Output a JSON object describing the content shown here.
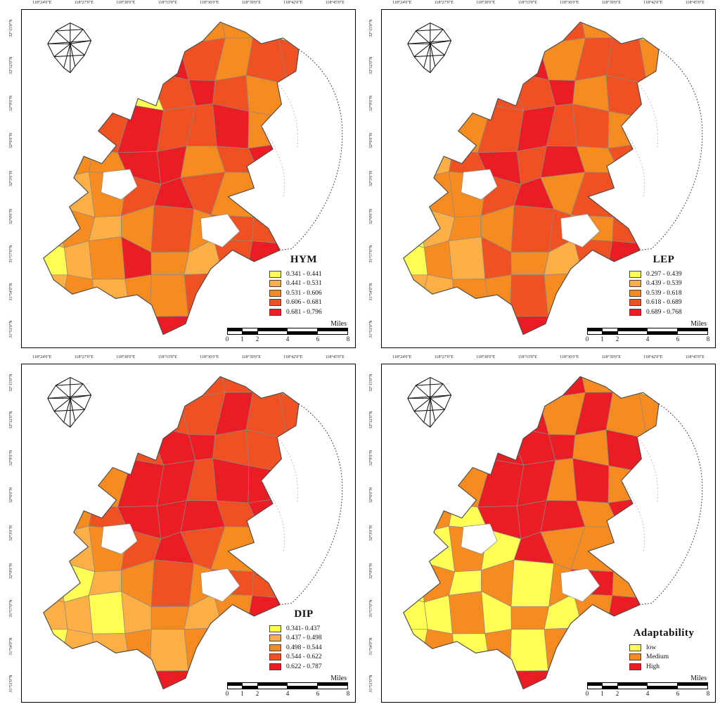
{
  "figure": {
    "top_axis_labels": [
      "118°24'0\"E",
      "118°27'0\"E",
      "118°30'0\"E",
      "118°33'0\"E",
      "118°36'0\"E",
      "118°39'0\"E",
      "118°42'0\"E",
      "118°45'0\"E"
    ],
    "left_axis_labels": [
      "32°15'0\"N",
      "32°12'0\"N",
      "32°9'0\"N",
      "32°6'0\"N",
      "32°3'0\"N",
      "32°0'0\"N",
      "31°57'0\"N",
      "31°54'0\"N",
      "31°51'0\"N"
    ],
    "scalebar": {
      "title": "Miles",
      "ticks": [
        "0",
        "1",
        "2",
        "4",
        "6",
        "8"
      ]
    },
    "palette5": [
      "#FFFF54",
      "#FBAF45",
      "#F68C1F",
      "#EF5122",
      "#EA1C24"
    ],
    "palette3": [
      "#FFFF54",
      "#F68C1F",
      "#EA1C24"
    ]
  },
  "panels": [
    {
      "id": "HYM",
      "title": "HYM",
      "palette": "palette5",
      "classes": [
        "0.341 - 0.441",
        "0.441 - 0.531",
        "0.531 - 0.606",
        "0.606 - 0.681",
        "0.681 - 0.796"
      ],
      "cells": [
        1,
        1,
        2,
        2,
        3,
        2,
        2,
        3,
        0,
        1,
        2,
        2,
        3,
        2,
        4,
        3,
        2,
        3,
        3,
        2,
        1,
        2,
        2,
        0,
        3,
        4,
        3,
        2,
        3,
        2,
        2,
        1,
        3,
        4,
        3,
        3,
        4,
        2,
        2,
        3,
        1,
        2,
        2,
        4,
        4,
        2,
        3,
        4,
        3,
        4,
        2,
        1,
        2,
        3,
        4,
        3,
        2,
        4,
        4,
        4,
        1,
        2,
        1,
        2,
        3,
        2,
        3,
        3,
        4,
        4,
        0,
        1,
        2,
        4,
        2,
        1,
        3,
        4,
        3,
        3,
        1,
        2,
        1,
        2,
        2,
        3,
        4,
        3,
        3,
        2,
        2,
        1,
        2,
        3,
        4,
        3,
        3,
        2,
        3,
        3
      ]
    },
    {
      "id": "LEP",
      "title": "LEP",
      "palette": "palette5",
      "classes": [
        "0.297 - 0.439",
        "0.439 - 0.539",
        "0.539 - 0.618",
        "0.618 - 0.689",
        "0.689 - 0.768"
      ],
      "cells": [
        2,
        2,
        2,
        3,
        2,
        3,
        2,
        2,
        0,
        2,
        1,
        2,
        3,
        3,
        4,
        2,
        3,
        3,
        2,
        1,
        2,
        1,
        2,
        3,
        3,
        4,
        2,
        3,
        3,
        2,
        1,
        2,
        2,
        3,
        4,
        3,
        3,
        2,
        2,
        3,
        2,
        1,
        3,
        4,
        3,
        4,
        2,
        3,
        4,
        4,
        1,
        2,
        2,
        3,
        4,
        2,
        3,
        4,
        4,
        4,
        0,
        1,
        2,
        2,
        3,
        3,
        2,
        3,
        4,
        4,
        0,
        2,
        1,
        3,
        2,
        1,
        3,
        4,
        3,
        3,
        1,
        1,
        2,
        2,
        3,
        2,
        4,
        3,
        3,
        2,
        2,
        2,
        1,
        3,
        4,
        3,
        2,
        3,
        3,
        3
      ]
    },
    {
      "id": "DIP",
      "title": "DIP",
      "palette": "palette5",
      "classes": [
        "0.341- 0.437",
        "0.437 - 0.498",
        "0.498 - 0.544",
        "0.544 - 0.622",
        "0.622 - 0.787"
      ],
      "cells": [
        2,
        2,
        3,
        3,
        4,
        3,
        3,
        4,
        2,
        2,
        2,
        3,
        3,
        4,
        3,
        3,
        4,
        3,
        3,
        2,
        1,
        2,
        3,
        3,
        4,
        4,
        3,
        3,
        4,
        2,
        2,
        1,
        2,
        4,
        4,
        3,
        4,
        4,
        3,
        3,
        1,
        2,
        3,
        4,
        4,
        4,
        3,
        4,
        2,
        2,
        1,
        1,
        2,
        3,
        4,
        3,
        2,
        4,
        4,
        3,
        1,
        0,
        1,
        2,
        3,
        2,
        3,
        3,
        4,
        4,
        1,
        1,
        0,
        1,
        2,
        1,
        2,
        4,
        3,
        3,
        0,
        1,
        1,
        2,
        1,
        2,
        4,
        2,
        3,
        2,
        1,
        2,
        1,
        2,
        4,
        2,
        3,
        2,
        2,
        2
      ]
    },
    {
      "id": "ADAPT",
      "title": "Adaptability",
      "palette": "palette3",
      "classes": [
        "low",
        "Medium",
        "High"
      ],
      "cells": [
        1,
        1,
        1,
        2,
        1,
        2,
        1,
        2,
        0,
        1,
        1,
        1,
        2,
        2,
        2,
        1,
        2,
        1,
        1,
        0,
        1,
        1,
        1,
        2,
        2,
        2,
        1,
        2,
        2,
        1,
        1,
        0,
        1,
        2,
        2,
        1,
        2,
        1,
        1,
        2,
        0,
        1,
        0,
        2,
        2,
        2,
        1,
        2,
        2,
        2,
        0,
        0,
        1,
        0,
        2,
        1,
        1,
        2,
        2,
        2,
        0,
        1,
        0,
        1,
        0,
        1,
        2,
        1,
        2,
        2,
        0,
        0,
        1,
        0,
        1,
        0,
        1,
        2,
        2,
        2,
        0,
        1,
        0,
        1,
        0,
        1,
        2,
        1,
        2,
        1,
        1,
        0,
        1,
        1,
        2,
        1,
        1,
        2,
        2,
        1
      ]
    }
  ]
}
